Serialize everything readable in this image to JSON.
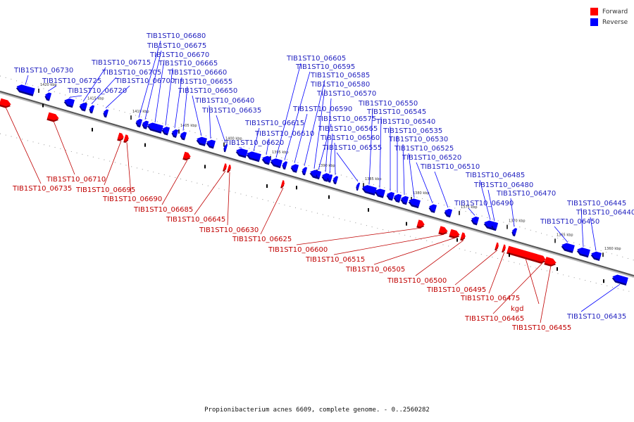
{
  "caption": "Propionibacterium acnes 6609, complete genome. - 0..2560282",
  "legend": [
    {
      "label": "Forward",
      "color": "#ff0000"
    },
    {
      "label": "Reverse",
      "color": "#0000ff"
    }
  ],
  "colors": {
    "forward": "#ff0000",
    "reverse": "#0000ff",
    "forward_label": "#c00000",
    "reverse_label": "#1f1fbf"
  },
  "scale_ticks": [
    "1420 kbp",
    "1415 kbp",
    "1410 kbp",
    "1405 kbp",
    "1400 kbp",
    "1395 kbp",
    "1390 kbp",
    "1385 kbp",
    "1380 kbp",
    "1375 kbp",
    "1370 kbp",
    "1365 kbp",
    "1360 kbp"
  ],
  "reverse_genes": [
    "TIB1ST10_06730",
    "TIB1ST10_06725",
    "TIB1ST10_06720",
    "TIB1ST10_06715",
    "TIB1ST10_06705",
    "TIB1ST10_06700",
    "TIB1ST10_06680",
    "TIB1ST10_06675",
    "TIB1ST10_06670",
    "TIB1ST10_06665",
    "TIB1ST10_06660",
    "TIB1ST10_06655",
    "TIB1ST10_06650",
    "TIB1ST10_06640",
    "TIB1ST10_06635",
    "TIB1ST10_06620",
    "TIB1ST10_06615",
    "TIB1ST10_06610",
    "TIB1ST10_06605",
    "TIB1ST10_06595",
    "TIB1ST10_06590",
    "TIB1ST10_06585",
    "TIB1ST10_06580",
    "TIB1ST10_06575",
    "TIB1ST10_06570",
    "TIB1ST10_06565",
    "TIB1ST10_06560",
    "TIB1ST10_06555",
    "TIB1ST10_06550",
    "TIB1ST10_06545",
    "TIB1ST10_06540",
    "TIB1ST10_06535",
    "TIB1ST10_06530",
    "TIB1ST10_06525",
    "TIB1ST10_06520",
    "TIB1ST10_06510",
    "TIB1ST10_06490",
    "TIB1ST10_06485",
    "TIB1ST10_06480",
    "TIB1ST10_06470",
    "TIB1ST10_06450",
    "TIB1ST10_06445",
    "TIB1ST10_06440",
    "TIB1ST10_06435"
  ],
  "forward_genes": [
    "TIB1ST10_06735",
    "TIB1ST10_06710",
    "TIB1ST10_06695",
    "TIB1ST10_06690",
    "TIB1ST10_06685",
    "TIB1ST10_06645",
    "TIB1ST10_06630",
    "TIB1ST10_06625",
    "TIB1ST10_06600",
    "TIB1ST10_06515",
    "TIB1ST10_06505",
    "TIB1ST10_06500",
    "TIB1ST10_06495",
    "TIB1ST10_06475",
    "kgd",
    "TIB1ST10_06465",
    "TIB1ST10_06455"
  ]
}
